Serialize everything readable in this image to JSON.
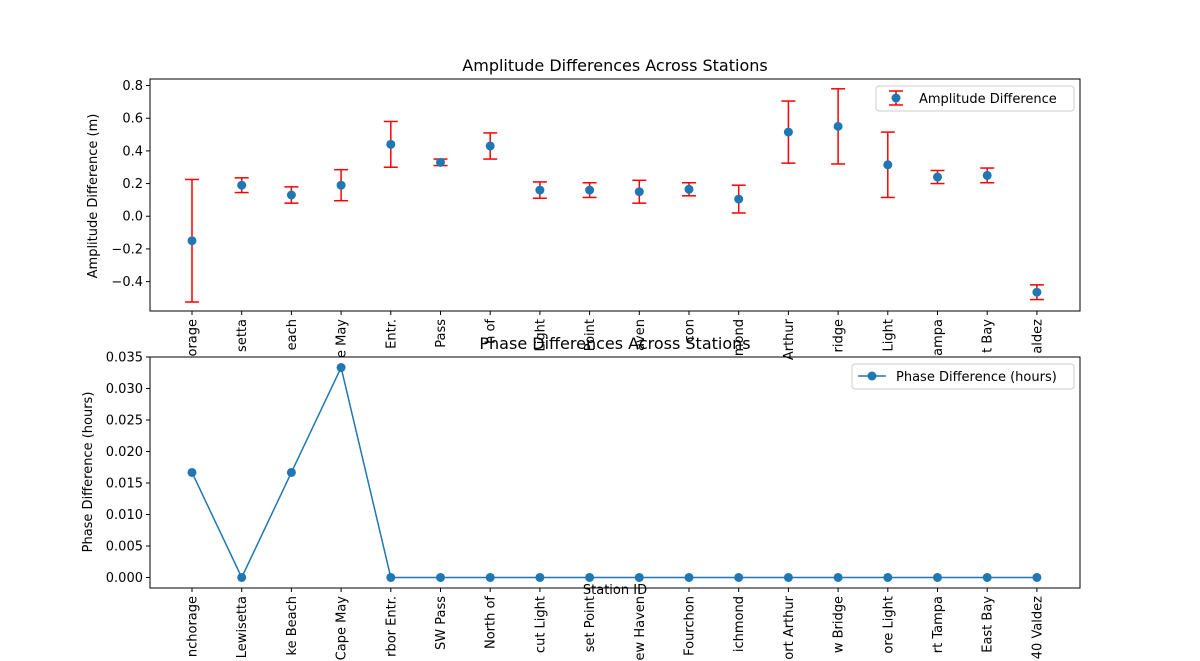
{
  "chart_data": [
    {
      "type": "errorbar",
      "title": "Amplitude Differences Across Stations",
      "xlabel": "",
      "ylabel": "Amplitude Difference (m)",
      "ylim": [
        -0.58,
        0.84
      ],
      "yticks": [
        -0.4,
        -0.2,
        0.0,
        0.2,
        0.4,
        0.6,
        0.8
      ],
      "ytick_labels": [
        "−0.4",
        "−0.2",
        "0.0",
        "0.2",
        "0.4",
        "0.6",
        "0.8"
      ],
      "categories": [
        "orage",
        "setta",
        "each",
        "e May",
        "Entr.",
        "Pass",
        "h of",
        "Light",
        "Point",
        "aven",
        "con",
        "mond",
        "Arthur",
        "ridge",
        "Light",
        "ampa",
        "t Bay",
        "aldez"
      ],
      "values": [
        -0.15,
        0.19,
        0.13,
        0.19,
        0.44,
        0.33,
        0.43,
        0.16,
        0.16,
        0.15,
        0.165,
        0.105,
        0.515,
        0.55,
        0.315,
        0.24,
        0.25,
        -0.465
      ],
      "errors": [
        0.375,
        0.045,
        0.05,
        0.095,
        0.14,
        0.02,
        0.08,
        0.05,
        0.045,
        0.07,
        0.04,
        0.085,
        0.19,
        0.23,
        0.2,
        0.04,
        0.045,
        0.045
      ],
      "legend": [
        "Amplitude Difference"
      ],
      "legend_position": "upper-right",
      "colors": {
        "marker": "#1f77b4",
        "errorbar": "#ff0000"
      }
    },
    {
      "type": "line",
      "title": "Phase Differences Across Stations",
      "xlabel": "Station ID",
      "ylabel": "Phase Difference (hours)",
      "ylim": [
        -0.00167,
        0.035
      ],
      "yticks": [
        0.0,
        0.005,
        0.01,
        0.015,
        0.02,
        0.025,
        0.03,
        0.035
      ],
      "ytick_labels": [
        "0.000",
        "0.005",
        "0.010",
        "0.015",
        "0.020",
        "0.025",
        "0.030",
        "0.035"
      ],
      "categories": [
        "nchorage",
        "Lewisetta",
        "ke Beach",
        "Cape May",
        "rbor Entr.",
        "SW Pass",
        "North of",
        "cut Light",
        "set Point",
        "ew Haven",
        "Fourchon",
        "ichmond",
        "ort Arthur",
        "w Bridge",
        "ore Light",
        "rt Tampa",
        "East Bay",
        "40 Valdez"
      ],
      "values": [
        0.01667,
        0.0,
        0.01667,
        0.03333,
        0.0,
        0.0,
        0.0,
        0.0,
        0.0,
        0.0,
        0.0,
        0.0,
        0.0,
        0.0,
        0.0,
        0.0,
        0.0,
        0.0
      ],
      "legend": [
        "Phase Difference (hours)"
      ],
      "legend_position": "upper-right",
      "colors": {
        "line": "#1f77b4"
      }
    }
  ]
}
